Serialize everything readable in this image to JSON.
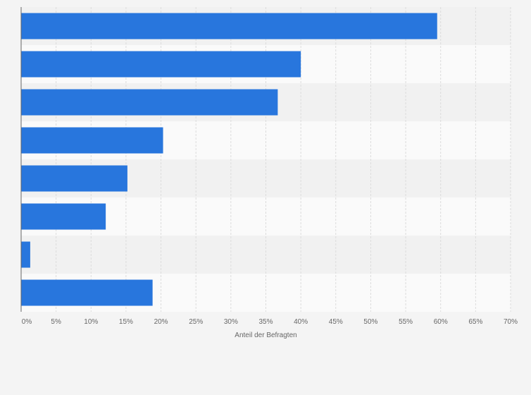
{
  "chart_data": {
    "type": "bar",
    "orientation": "horizontal",
    "categories": [
      "",
      "",
      "",
      "",
      "",
      "",
      "",
      ""
    ],
    "values": [
      59.5,
      40,
      36.7,
      20.3,
      15.2,
      12.1,
      1.3,
      18.8
    ],
    "xlabel": "Anteil der Befragten",
    "ylabel": "",
    "xlim": [
      0,
      70
    ],
    "x_ticks": [
      0,
      5,
      10,
      15,
      20,
      25,
      30,
      35,
      40,
      45,
      50,
      55,
      60,
      65,
      70
    ],
    "x_tick_labels": [
      "0%",
      "5%",
      "10%",
      "15%",
      "20%",
      "25%",
      "30%",
      "35%",
      "40%",
      "45%",
      "50%",
      "55%",
      "60%",
      "65%",
      "70%"
    ],
    "grid": true,
    "colors": {
      "bar": "#2876dd",
      "band_dark": "#f1f1f1",
      "band_light": "#fafafa",
      "grid": "#dcdcdc",
      "axis": "#666666"
    }
  }
}
